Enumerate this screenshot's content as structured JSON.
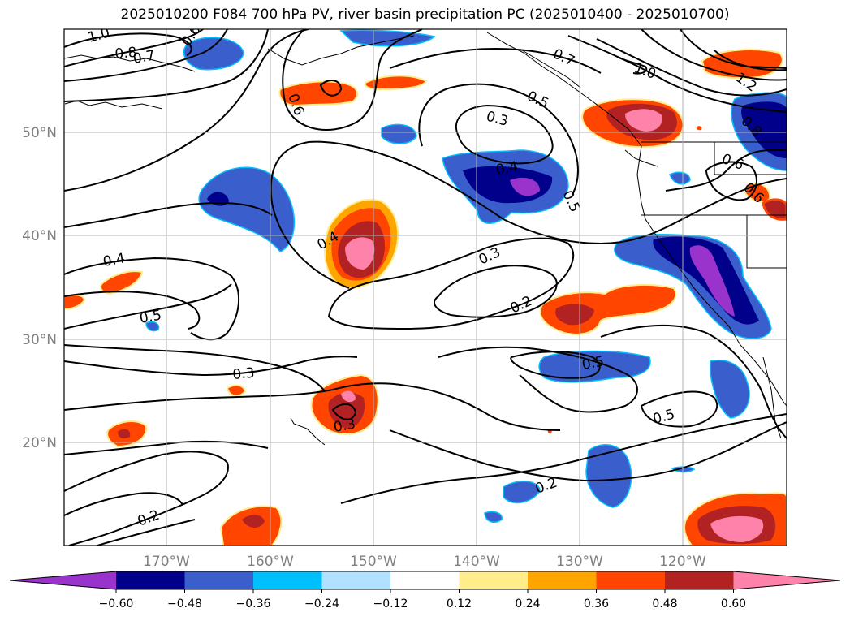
{
  "title": "2025010200 F084 700 hPa PV, river basin precipitation PC (2025010400 - 2025010700)",
  "lon_labels": [
    "170°W",
    "160°W",
    "150°W",
    "140°W",
    "130°W",
    "120°W"
  ],
  "lat_labels": [
    "50°N",
    "40°N",
    "30°N",
    "20°N"
  ],
  "contour_labels": [
    "1.0",
    "0.8",
    "0.7",
    "0.6",
    "0.6",
    "0.7",
    "0.5",
    "0.3",
    "0.4",
    "0.5",
    "1.0",
    "1.2",
    "0.8",
    "0.6",
    "0.6",
    "0.4",
    "0.4",
    "0.3",
    "0.2",
    "0.5",
    "0.3",
    "0.3",
    "0.5",
    "0.5",
    "0.2",
    "0.2"
  ],
  "colorbar": {
    "colors": [
      "#9933cc",
      "#00008b",
      "#3a5fcd",
      "#00bfff",
      "#b0e2ff",
      "#ffffff",
      "#ffec8b",
      "#ffa500",
      "#ff4500",
      "#b22222",
      "#ff82ab"
    ],
    "ticks": [
      "−0.60",
      "−0.48",
      "−0.36",
      "−0.24",
      "−0.12",
      "0.12",
      "0.24",
      "0.36",
      "0.48",
      "0.60"
    ]
  }
}
